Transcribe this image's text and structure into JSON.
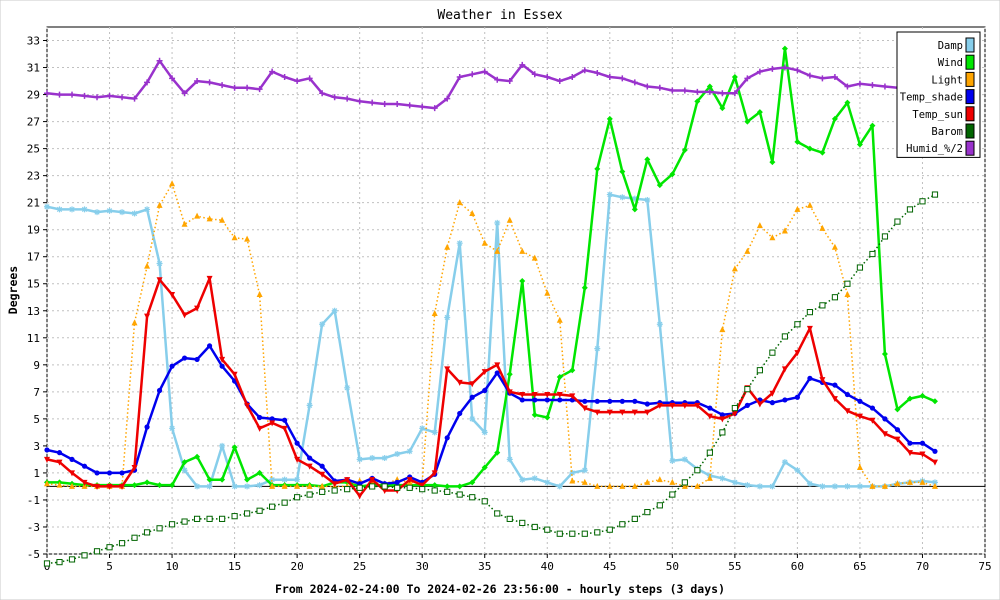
{
  "chart_data": {
    "type": "line",
    "title": "Weather in Essex",
    "xlabel": "From 2024-02-24:00 To 2024-02-26 23:56:00 - hourly steps (3 days)",
    "ylabel": "Degrees",
    "xlim": [
      0,
      75
    ],
    "ylim": [
      -5,
      34
    ],
    "xticks": [
      0,
      5,
      10,
      15,
      20,
      25,
      30,
      35,
      40,
      45,
      50,
      55,
      60,
      65,
      70,
      75
    ],
    "yticks": [
      -5,
      -3,
      -1,
      1,
      3,
      5,
      7,
      9,
      11,
      13,
      15,
      17,
      19,
      21,
      23,
      25,
      27,
      29,
      31,
      33
    ],
    "grid": true,
    "legend_position": "top-right",
    "series": [
      {
        "name": "Damp",
        "color": "#87ceeb",
        "marker": "star",
        "style": "solid",
        "width": 2.5,
        "values": [
          20.7,
          20.5,
          20.5,
          20.5,
          20.3,
          20.4,
          20.3,
          20.2,
          20.5,
          16.5,
          4.3,
          1.2,
          0.0,
          0.0,
          3.0,
          0.0,
          0.0,
          0.1,
          0.5,
          0.5,
          0.5,
          6.0,
          12.0,
          13.0,
          7.3,
          2.0,
          2.1,
          2.1,
          2.4,
          2.6,
          4.3,
          4.0,
          12.5,
          18.0,
          5.0,
          4.0,
          19.5,
          2.0,
          0.5,
          0.6,
          0.3,
          0.0,
          1.0,
          1.2,
          10.2,
          21.6,
          21.4,
          21.3,
          21.2,
          12.0,
          1.9,
          2.0,
          1.3,
          0.8,
          0.6,
          0.3,
          0.1,
          0.0,
          0.0,
          1.8,
          1.2,
          0.2,
          0.0,
          0.0,
          0.0,
          0.0,
          0.0,
          0.0,
          0.2,
          0.3,
          0.4,
          0.3
        ]
      },
      {
        "name": "Wind",
        "color": "#00e600",
        "marker": "diamond",
        "style": "solid",
        "width": 2.5,
        "values": [
          0.3,
          0.3,
          0.2,
          0.1,
          0.1,
          0.1,
          0.1,
          0.1,
          0.3,
          0.1,
          0.1,
          1.8,
          2.2,
          0.5,
          0.5,
          2.9,
          0.5,
          1.0,
          0.1,
          0.1,
          0.1,
          0.1,
          0.0,
          0.3,
          0.3,
          0.0,
          0.1,
          0.1,
          0.1,
          0.1,
          0.1,
          0.1,
          0.0,
          0.0,
          0.3,
          1.4,
          2.5,
          8.3,
          15.2,
          5.3,
          5.1,
          8.1,
          8.6,
          14.7,
          23.5,
          27.2,
          23.3,
          20.5,
          24.2,
          22.3,
          23.1,
          24.9,
          28.5,
          29.6,
          28.0,
          30.3,
          27.0,
          27.7,
          24.0,
          32.4,
          25.5,
          25.0,
          24.7,
          27.2,
          28.4,
          25.3,
          26.7,
          9.8,
          5.7,
          6.5,
          6.7,
          6.3
        ]
      },
      {
        "name": "Light",
        "color": "#ffa500",
        "marker": "triangle",
        "style": "dotted",
        "width": 1.5,
        "values": [
          0.2,
          0.1,
          0.0,
          0.0,
          0.0,
          0.0,
          0.0,
          12.1,
          16.3,
          20.8,
          22.4,
          19.4,
          20.0,
          19.8,
          19.7,
          18.4,
          18.3,
          14.2,
          0.0,
          0.0,
          0.0,
          0.0,
          0.0,
          0.0,
          0.0,
          0.4,
          0.3,
          0.2,
          0.5,
          0.3,
          0.3,
          12.8,
          17.7,
          21.0,
          20.2,
          18.0,
          17.4,
          19.7,
          17.4,
          16.9,
          14.3,
          12.3,
          0.4,
          0.3,
          0.0,
          0.0,
          0.0,
          0.0,
          0.3,
          0.5,
          0.3,
          0.0,
          0.0,
          0.6,
          11.6,
          16.1,
          17.4,
          19.3,
          18.4,
          18.9,
          20.5,
          20.8,
          19.1,
          17.7,
          14.2,
          1.4,
          0.0,
          0.0,
          0.2,
          0.3,
          0.3,
          0.0
        ]
      },
      {
        "name": "Temp_shade",
        "color": "#0000ee",
        "marker": "circle",
        "style": "solid",
        "width": 2.5,
        "values": [
          2.7,
          2.5,
          2.0,
          1.5,
          1.0,
          1.0,
          1.0,
          1.2,
          4.4,
          7.1,
          8.9,
          9.5,
          9.4,
          10.4,
          8.9,
          7.8,
          6.1,
          5.1,
          5.0,
          4.9,
          3.2,
          2.1,
          1.5,
          0.4,
          0.5,
          0.2,
          0.6,
          0.2,
          0.3,
          0.7,
          0.3,
          0.9,
          3.6,
          5.4,
          6.6,
          7.1,
          8.4,
          6.9,
          6.4,
          6.4,
          6.4,
          6.4,
          6.4,
          6.3,
          6.3,
          6.3,
          6.3,
          6.3,
          6.1,
          6.2,
          6.2,
          6.2,
          6.2,
          5.8,
          5.3,
          5.4,
          6.0,
          6.4,
          6.2,
          6.4,
          6.6,
          8.0,
          7.7,
          7.5,
          6.8,
          6.3,
          5.8,
          5.0,
          4.2,
          3.2,
          3.2,
          2.6
        ]
      },
      {
        "name": "Temp_sun",
        "color": "#ee0000",
        "marker": "triangle-down",
        "style": "solid",
        "width": 2.5,
        "values": [
          2.0,
          1.8,
          1.0,
          0.3,
          0.0,
          0.0,
          0.0,
          1.4,
          12.6,
          15.3,
          14.2,
          12.7,
          13.2,
          15.4,
          9.4,
          8.3,
          6.0,
          4.3,
          4.7,
          4.3,
          2.0,
          1.5,
          0.9,
          0.2,
          0.5,
          -0.7,
          0.5,
          -0.3,
          -0.3,
          0.5,
          0.1,
          1.0,
          8.7,
          7.7,
          7.6,
          8.5,
          9.0,
          7.0,
          6.8,
          6.8,
          6.8,
          6.8,
          6.7,
          5.8,
          5.5,
          5.5,
          5.5,
          5.5,
          5.5,
          6.0,
          6.0,
          6.0,
          6.0,
          5.2,
          5.0,
          5.4,
          7.3,
          6.1,
          6.9,
          8.7,
          9.9,
          11.7,
          7.9,
          6.5,
          5.6,
          5.2,
          4.9,
          3.9,
          3.5,
          2.5,
          2.4,
          1.8
        ]
      },
      {
        "name": "Barom",
        "color": "#006400",
        "marker": "square",
        "style": "dotted",
        "width": 1.5,
        "values": [
          -5.7,
          -5.6,
          -5.4,
          -5.1,
          -4.8,
          -4.5,
          -4.2,
          -3.8,
          -3.4,
          -3.1,
          -2.8,
          -2.6,
          -2.4,
          -2.4,
          -2.4,
          -2.2,
          -2.0,
          -1.8,
          -1.5,
          -1.2,
          -0.8,
          -0.6,
          -0.4,
          -0.3,
          -0.2,
          -0.1,
          0.0,
          0.0,
          -0.1,
          -0.1,
          -0.2,
          -0.3,
          -0.4,
          -0.6,
          -0.8,
          -1.1,
          -2.0,
          -2.4,
          -2.7,
          -3.0,
          -3.2,
          -3.5,
          -3.5,
          -3.5,
          -3.4,
          -3.2,
          -2.8,
          -2.4,
          -1.9,
          -1.4,
          -0.6,
          0.3,
          1.2,
          2.5,
          4.0,
          5.8,
          7.2,
          8.6,
          9.9,
          11.1,
          12.0,
          12.9,
          13.4,
          14.0,
          15.0,
          16.2,
          17.2,
          18.5,
          19.6,
          20.5,
          21.1,
          21.6
        ]
      },
      {
        "name": "Humid_%/2",
        "color": "#9932cc",
        "marker": "plus",
        "style": "solid",
        "width": 2.5,
        "values": [
          29.1,
          29.0,
          29.0,
          28.9,
          28.8,
          28.9,
          28.8,
          28.7,
          29.9,
          31.5,
          30.2,
          29.1,
          30.0,
          29.9,
          29.7,
          29.5,
          29.5,
          29.4,
          30.7,
          30.3,
          30.0,
          30.2,
          29.1,
          28.8,
          28.7,
          28.5,
          28.4,
          28.3,
          28.3,
          28.2,
          28.1,
          28.0,
          28.7,
          30.3,
          30.5,
          30.7,
          30.1,
          30.0,
          31.2,
          30.5,
          30.3,
          30.0,
          30.3,
          30.8,
          30.6,
          30.3,
          30.2,
          29.9,
          29.6,
          29.5,
          29.3,
          29.3,
          29.2,
          29.2,
          29.1,
          29.1,
          30.2,
          30.7,
          30.9,
          31.0,
          30.8,
          30.4,
          30.2,
          30.3,
          29.6,
          29.8,
          29.7,
          29.6,
          29.5,
          29.5,
          29.5,
          29.4
        ]
      }
    ]
  }
}
